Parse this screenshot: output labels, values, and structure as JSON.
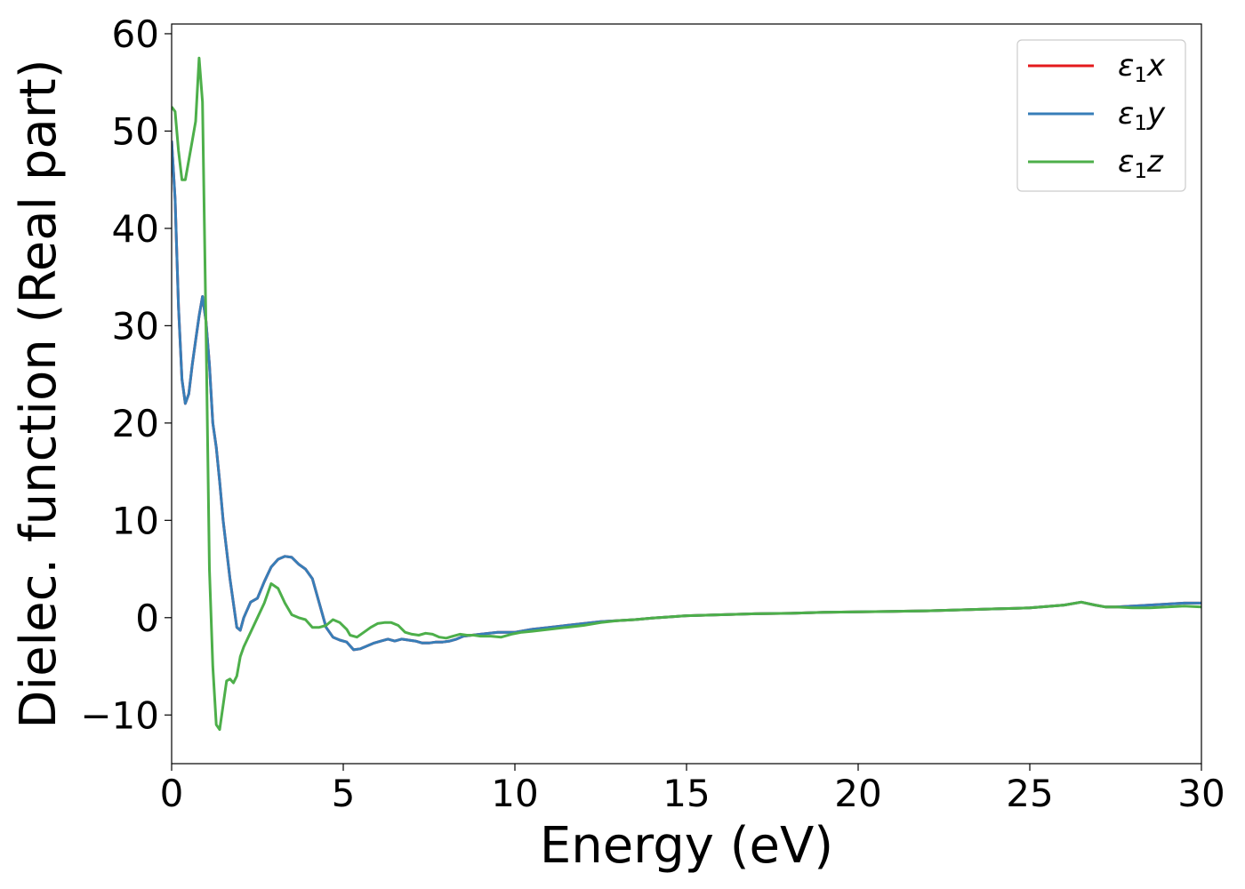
{
  "chart_data": {
    "type": "line",
    "title": "",
    "xlabel": "Energy (eV)",
    "ylabel": "Dielec. function (Real part)",
    "xlim": [
      0,
      30
    ],
    "ylim": [
      -15,
      61
    ],
    "xticks": [
      0,
      5,
      10,
      15,
      20,
      25,
      30
    ],
    "xtick_labels": [
      "0",
      "5",
      "10",
      "15",
      "20",
      "25",
      "30"
    ],
    "yticks": [
      -10,
      0,
      10,
      20,
      30,
      40,
      50,
      60
    ],
    "ytick_labels": [
      "−10",
      "0",
      "10",
      "20",
      "30",
      "40",
      "50",
      "60"
    ],
    "grid": false,
    "legend_position": "top-right",
    "series": [
      {
        "name": "ε1x",
        "legend_base": "ε",
        "legend_sub": "1",
        "legend_var": "x",
        "color": "#e41a1c",
        "x": [
          0,
          0.1,
          0.2,
          0.3,
          0.4,
          0.5,
          0.6,
          0.7,
          0.8,
          0.9,
          1.0,
          1.1,
          1.2,
          1.3,
          1.4,
          1.5,
          1.7,
          1.9,
          2.0,
          2.1,
          2.3,
          2.5,
          2.7,
          2.9,
          3.1,
          3.3,
          3.5,
          3.7,
          3.9,
          4.1,
          4.3,
          4.5,
          4.7,
          4.9,
          5.1,
          5.3,
          5.5,
          5.7,
          5.9,
          6.1,
          6.3,
          6.5,
          6.7,
          6.9,
          7.1,
          7.3,
          7.5,
          7.7,
          7.9,
          8.1,
          8.3,
          8.5,
          9.0,
          9.5,
          10.0,
          10.5,
          11.0,
          11.5,
          12.0,
          12.5,
          13.0,
          13.5,
          14.0,
          15.0,
          16.0,
          17.0,
          18.0,
          19.0,
          20.0,
          21.0,
          22.0,
          23.0,
          24.0,
          25.0,
          26.0,
          26.5,
          26.9,
          27.2,
          27.5,
          28.0,
          28.5,
          29.0,
          29.5,
          30.0
        ],
        "y": [
          49,
          43,
          32,
          24.5,
          22,
          23,
          26,
          28.5,
          31,
          33,
          30.5,
          26,
          20,
          17.5,
          14,
          10,
          4,
          -1,
          -1.3,
          0,
          1.6,
          2,
          3.7,
          5.2,
          6,
          6.3,
          6.2,
          5.5,
          5,
          4,
          1.5,
          -1,
          -2,
          -2.3,
          -2.5,
          -3.3,
          -3.2,
          -2.9,
          -2.6,
          -2.4,
          -2.2,
          -2.4,
          -2.2,
          -2.3,
          -2.4,
          -2.6,
          -2.6,
          -2.5,
          -2.5,
          -2.4,
          -2.2,
          -1.9,
          -1.7,
          -1.5,
          -1.5,
          -1.2,
          -1.0,
          -0.8,
          -0.6,
          -0.4,
          -0.3,
          -0.2,
          -0.05,
          0.2,
          0.3,
          0.4,
          0.45,
          0.55,
          0.6,
          0.65,
          0.7,
          0.8,
          0.9,
          1.0,
          1.3,
          1.6,
          1.3,
          1.1,
          1.1,
          1.2,
          1.3,
          1.4,
          1.5,
          1.5
        ]
      },
      {
        "name": "ε1y",
        "legend_base": "ε",
        "legend_sub": "1",
        "legend_var": "y",
        "color": "#377eb8",
        "x": [
          0,
          0.1,
          0.2,
          0.3,
          0.4,
          0.5,
          0.6,
          0.7,
          0.8,
          0.9,
          1.0,
          1.1,
          1.2,
          1.3,
          1.4,
          1.5,
          1.7,
          1.9,
          2.0,
          2.1,
          2.3,
          2.5,
          2.7,
          2.9,
          3.1,
          3.3,
          3.5,
          3.7,
          3.9,
          4.1,
          4.3,
          4.5,
          4.7,
          4.9,
          5.1,
          5.3,
          5.5,
          5.7,
          5.9,
          6.1,
          6.3,
          6.5,
          6.7,
          6.9,
          7.1,
          7.3,
          7.5,
          7.7,
          7.9,
          8.1,
          8.3,
          8.5,
          9.0,
          9.5,
          10.0,
          10.5,
          11.0,
          11.5,
          12.0,
          12.5,
          13.0,
          13.5,
          14.0,
          15.0,
          16.0,
          17.0,
          18.0,
          19.0,
          20.0,
          21.0,
          22.0,
          23.0,
          24.0,
          25.0,
          26.0,
          26.5,
          26.9,
          27.2,
          27.5,
          28.0,
          28.5,
          29.0,
          29.5,
          30.0
        ],
        "y": [
          49,
          43,
          32,
          24.5,
          22,
          23,
          26,
          28.5,
          31,
          33,
          30.5,
          26,
          20,
          17.5,
          14,
          10,
          4,
          -1,
          -1.3,
          0,
          1.6,
          2,
          3.7,
          5.2,
          6,
          6.3,
          6.2,
          5.5,
          5,
          4,
          1.5,
          -1,
          -2,
          -2.3,
          -2.5,
          -3.3,
          -3.2,
          -2.9,
          -2.6,
          -2.4,
          -2.2,
          -2.4,
          -2.2,
          -2.3,
          -2.4,
          -2.6,
          -2.6,
          -2.5,
          -2.5,
          -2.4,
          -2.2,
          -1.9,
          -1.7,
          -1.5,
          -1.5,
          -1.2,
          -1.0,
          -0.8,
          -0.6,
          -0.4,
          -0.3,
          -0.2,
          -0.05,
          0.2,
          0.3,
          0.4,
          0.45,
          0.55,
          0.6,
          0.65,
          0.7,
          0.8,
          0.9,
          1.0,
          1.3,
          1.6,
          1.3,
          1.1,
          1.1,
          1.2,
          1.3,
          1.4,
          1.5,
          1.5
        ]
      },
      {
        "name": "ε1z",
        "legend_base": "ε",
        "legend_sub": "1",
        "legend_var": "z",
        "color": "#4daf4a",
        "x": [
          0,
          0.1,
          0.2,
          0.3,
          0.4,
          0.5,
          0.6,
          0.7,
          0.8,
          0.9,
          1.0,
          1.1,
          1.2,
          1.3,
          1.4,
          1.5,
          1.6,
          1.7,
          1.8,
          1.9,
          2.0,
          2.1,
          2.3,
          2.5,
          2.7,
          2.9,
          3.1,
          3.3,
          3.5,
          3.7,
          3.9,
          4.1,
          4.3,
          4.5,
          4.7,
          4.9,
          5.1,
          5.2,
          5.4,
          5.6,
          5.8,
          6.0,
          6.2,
          6.4,
          6.6,
          6.8,
          7.0,
          7.2,
          7.4,
          7.6,
          7.8,
          8.0,
          8.2,
          8.4,
          8.6,
          8.8,
          9.0,
          9.3,
          9.6,
          9.9,
          10.2,
          10.5,
          11.0,
          11.5,
          12.0,
          12.5,
          13.0,
          13.5,
          14.0,
          15.0,
          16.0,
          17.0,
          18.0,
          19.0,
          20.0,
          21.0,
          22.0,
          23.0,
          24.0,
          25.0,
          26.0,
          26.5,
          26.9,
          27.2,
          27.5,
          28.0,
          28.5,
          29.0,
          29.5,
          30.0
        ],
        "y": [
          52.5,
          52,
          48,
          45,
          45,
          47,
          49,
          51,
          57.5,
          53,
          30,
          5,
          -5,
          -11,
          -11.5,
          -9,
          -6.5,
          -6.3,
          -6.7,
          -6,
          -4,
          -3,
          -1.5,
          0,
          1.5,
          3.5,
          3,
          1.5,
          0.3,
          0,
          -0.2,
          -1,
          -1,
          -0.8,
          -0.2,
          -0.5,
          -1.2,
          -1.8,
          -2.0,
          -1.5,
          -1.0,
          -0.6,
          -0.5,
          -0.5,
          -0.8,
          -1.5,
          -1.7,
          -1.8,
          -1.6,
          -1.7,
          -2.0,
          -2.1,
          -1.9,
          -1.7,
          -1.8,
          -1.8,
          -1.9,
          -1.9,
          -2.0,
          -1.7,
          -1.5,
          -1.4,
          -1.2,
          -1.0,
          -0.8,
          -0.5,
          -0.3,
          -0.2,
          -0.05,
          0.2,
          0.3,
          0.4,
          0.45,
          0.55,
          0.6,
          0.65,
          0.7,
          0.8,
          0.9,
          1.0,
          1.3,
          1.6,
          1.3,
          1.1,
          1.1,
          1.0,
          1.0,
          1.1,
          1.2,
          1.1
        ]
      }
    ]
  }
}
